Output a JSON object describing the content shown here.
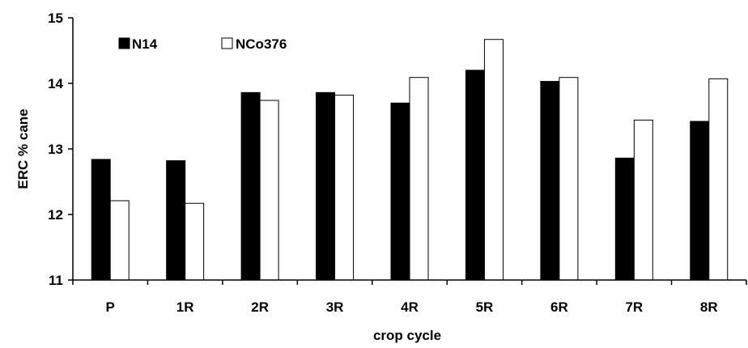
{
  "chart_data": {
    "type": "bar",
    "title": "",
    "xlabel": "crop cycle",
    "ylabel": "ERC % cane",
    "categories": [
      "P",
      "1R",
      "2R",
      "3R",
      "4R",
      "5R",
      "6R",
      "7R",
      "8R"
    ],
    "ylim": [
      11,
      15
    ],
    "yticks": [
      "11",
      "12",
      "13",
      "14",
      "15"
    ],
    "grid": false,
    "legend": "top-left",
    "series": [
      {
        "name": "N14",
        "color": "#000000",
        "values": [
          12.84,
          12.82,
          13.86,
          13.86,
          13.7,
          14.2,
          14.03,
          12.86,
          13.42
        ]
      },
      {
        "name": "NCo376",
        "color": "#ffffff",
        "values": [
          12.21,
          12.17,
          13.74,
          13.82,
          14.09,
          14.67,
          14.09,
          13.44,
          14.07
        ]
      }
    ]
  }
}
